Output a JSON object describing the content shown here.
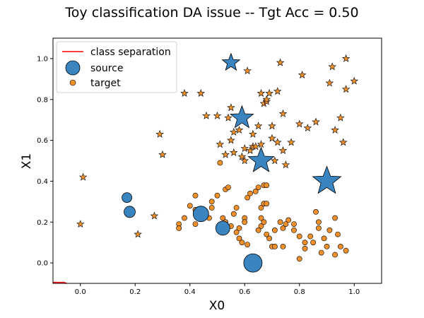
{
  "chart_data": {
    "type": "scatter",
    "title": "Toy classification DA issue -- Tgt Acc = 0.50",
    "xlabel": "X0",
    "ylabel": "X1",
    "xlim": [
      -0.1,
      1.1
    ],
    "ylim": [
      -0.1,
      1.1
    ],
    "xticks": [
      "0.0",
      "0.2",
      "0.4",
      "0.6",
      "0.8",
      "1.0"
    ],
    "yticks": [
      "0.0",
      "0.2",
      "0.4",
      "0.6",
      "0.8",
      "1.0"
    ],
    "grid": false,
    "legend_position": "upper-left",
    "legend": [
      {
        "label": "class separation",
        "kind": "line",
        "color": "#ff0000"
      },
      {
        "label": "source",
        "kind": "marker",
        "color": "#3a84bf"
      },
      {
        "label": "target",
        "kind": "marker",
        "color": "#f0902a"
      }
    ],
    "colors": {
      "source": "#3a84bf",
      "target": "#f0902a",
      "separation": "#ff0000"
    },
    "class_separation": {
      "x": [
        -0.1,
        -0.06,
        -0.05
      ],
      "y": [
        -0.095,
        -0.095,
        -0.1
      ]
    },
    "series": [
      {
        "name": "source",
        "class_circle": [
          [
            0.17,
            0.32
          ],
          [
            0.18,
            0.25
          ],
          [
            0.44,
            0.24
          ],
          [
            0.52,
            0.17
          ],
          [
            0.63,
            0.0
          ]
        ],
        "class_star": [
          [
            0.55,
            0.98
          ],
          [
            0.59,
            0.71
          ],
          [
            0.66,
            0.5
          ],
          [
            0.9,
            0.4
          ]
        ]
      },
      {
        "name": "target",
        "class_circle": [
          [
            0.42,
            0.33
          ],
          [
            0.4,
            0.28
          ],
          [
            0.42,
            0.26
          ],
          [
            0.38,
            0.22
          ],
          [
            0.36,
            0.19
          ],
          [
            0.36,
            0.17
          ],
          [
            0.42,
            0.19
          ],
          [
            0.47,
            0.22
          ],
          [
            0.48,
            0.3
          ],
          [
            0.48,
            0.27
          ],
          [
            0.53,
            0.36
          ],
          [
            0.54,
            0.37
          ],
          [
            0.5,
            0.33
          ],
          [
            0.52,
            0.22
          ],
          [
            0.53,
            0.2
          ],
          [
            0.56,
            0.24
          ],
          [
            0.55,
            0.18
          ],
          [
            0.6,
            0.22
          ],
          [
            0.6,
            0.2
          ],
          [
            0.57,
            0.15
          ],
          [
            0.58,
            0.12
          ],
          [
            0.59,
            0.1
          ],
          [
            0.61,
            0.09
          ],
          [
            0.66,
            0.18
          ],
          [
            0.65,
            0.16
          ],
          [
            0.67,
            0.2
          ],
          [
            0.68,
            0.14
          ],
          [
            0.69,
            0.12
          ],
          [
            0.7,
            0.08
          ],
          [
            0.71,
            0.08
          ],
          [
            0.73,
            0.2
          ],
          [
            0.74,
            0.17
          ],
          [
            0.76,
            0.21
          ],
          [
            0.78,
            0.19
          ],
          [
            0.78,
            0.16
          ],
          [
            0.8,
            0.13
          ],
          [
            0.82,
            0.1
          ],
          [
            0.82,
            0.07
          ],
          [
            0.84,
            0.13
          ],
          [
            0.86,
            0.25
          ],
          [
            0.87,
            0.2
          ],
          [
            0.87,
            0.17
          ],
          [
            0.89,
            0.12
          ],
          [
            0.91,
            0.16
          ],
          [
            0.93,
            0.22
          ],
          [
            0.94,
            0.14
          ],
          [
            0.95,
            0.08
          ],
          [
            0.97,
            0.06
          ],
          [
            0.9,
            0.08
          ],
          [
            0.64,
            0.35
          ],
          [
            0.61,
            0.32
          ],
          [
            0.57,
            0.27
          ],
          [
            0.51,
            0.49
          ],
          [
            0.66,
            0.27
          ],
          [
            0.67,
            0.29
          ],
          [
            0.68,
            0.29
          ],
          [
            0.67,
            0.38
          ],
          [
            0.68,
            0.38
          ],
          [
            0.65,
            0.37
          ],
          [
            0.62,
            0.34
          ],
          [
            0.58,
            0.17
          ],
          [
            0.66,
            0.22
          ],
          [
            0.74,
            0.08
          ],
          [
            0.8,
            0.02
          ],
          [
            0.85,
            0.1
          ],
          [
            0.88,
            0.05
          ],
          [
            0.93,
            0.04
          ],
          [
            0.75,
            0.19
          ],
          [
            0.71,
            0.16
          ]
        ],
        "class_star": [
          [
            0.01,
            0.42
          ],
          [
            0.0,
            0.19
          ],
          [
            0.21,
            0.14
          ],
          [
            0.27,
            0.23
          ],
          [
            0.29,
            0.63
          ],
          [
            0.3,
            0.53
          ],
          [
            0.38,
            0.83
          ],
          [
            0.44,
            0.83
          ],
          [
            0.46,
            0.72
          ],
          [
            0.5,
            0.72
          ],
          [
            0.51,
            0.58
          ],
          [
            0.53,
            0.53
          ],
          [
            0.55,
            0.76
          ],
          [
            0.56,
            0.64
          ],
          [
            0.56,
            0.54
          ],
          [
            0.58,
            0.65
          ],
          [
            0.59,
            0.52
          ],
          [
            0.6,
            0.56
          ],
          [
            0.61,
            0.94
          ],
          [
            0.62,
            0.55
          ],
          [
            0.63,
            0.57
          ],
          [
            0.64,
            0.57
          ],
          [
            0.65,
            0.67
          ],
          [
            0.66,
            0.58
          ],
          [
            0.67,
            0.78
          ],
          [
            0.68,
            0.79
          ],
          [
            0.68,
            0.8
          ],
          [
            0.69,
            0.83
          ],
          [
            0.7,
            0.61
          ],
          [
            0.71,
            0.5
          ],
          [
            0.72,
            0.84
          ],
          [
            0.72,
            0.59
          ],
          [
            0.73,
            0.98
          ],
          [
            0.74,
            0.55
          ],
          [
            0.75,
            0.48
          ],
          [
            0.77,
            0.59
          ],
          [
            0.8,
            0.68
          ],
          [
            0.81,
            0.92
          ],
          [
            0.83,
            0.66
          ],
          [
            0.91,
            0.88
          ],
          [
            0.92,
            0.96
          ],
          [
            0.93,
            0.65
          ],
          [
            0.95,
            0.71
          ],
          [
            0.96,
            0.59
          ],
          [
            0.97,
            0.85
          ],
          [
            0.97,
            1.0
          ],
          [
            1.0,
            0.89
          ],
          [
            0.54,
            0.71
          ],
          [
            0.55,
            0.6
          ],
          [
            0.63,
            0.63
          ],
          [
            0.7,
            0.67
          ],
          [
            0.74,
            0.73
          ],
          [
            0.86,
            0.69
          ],
          [
            0.66,
            0.83
          ],
          [
            0.6,
            0.5
          ]
        ]
      }
    ]
  }
}
